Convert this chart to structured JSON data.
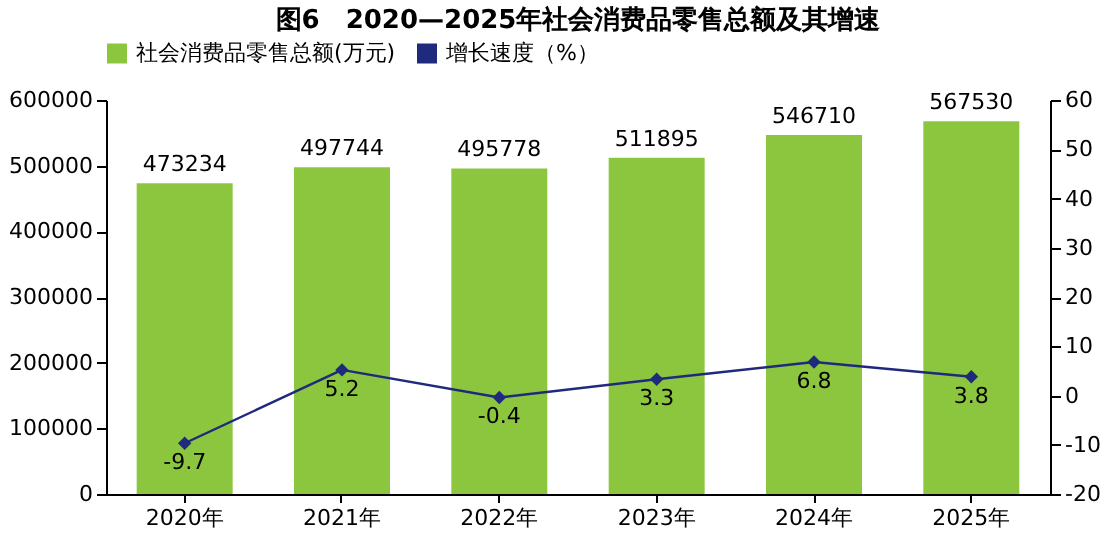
{
  "chart_data": {
    "type": "bar",
    "title": "图6　2020—2025年社会消费品零售总额及其增速",
    "categories": [
      "2020年",
      "2021年",
      "2022年",
      "2023年",
      "2024年",
      "2025年"
    ],
    "series": [
      {
        "name": "社会消费品零售总额(万元)",
        "color": "#8cc63f",
        "values": [
          473234,
          497744,
          495778,
          511895,
          546710,
          567530
        ]
      },
      {
        "name": "增长速度（%）",
        "type": "line",
        "axis": "y2",
        "color": "#1f2a7c",
        "marker": "diamond",
        "values": [
          -9.7,
          5.2,
          -0.4,
          3.3,
          6.8,
          3.8
        ]
      }
    ],
    "ylim": [
      0,
      600000
    ],
    "yticks": [
      0,
      100000,
      200000,
      300000,
      400000,
      500000,
      600000
    ],
    "y2lim": [
      -20,
      60
    ],
    "y2ticks": [
      -20,
      -10,
      0,
      10,
      20,
      30,
      40,
      50,
      60
    ],
    "data_labels": true,
    "grid": false,
    "legend": "top"
  }
}
